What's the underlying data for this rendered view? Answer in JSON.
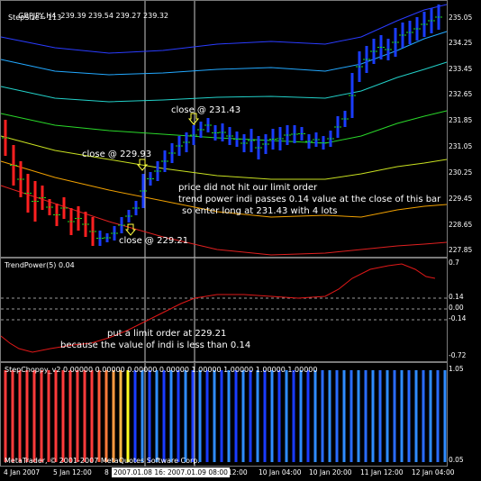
{
  "chart": {
    "symbol_label": "GBPJPY,H4",
    "ohlc": "239.39 239.54 239.27 239.32",
    "stepsize_label": "StepSize= 113",
    "price_ticks": [
      "235.05",
      "234.25",
      "233.45",
      "232.65",
      "231.85",
      "231.05",
      "230.25",
      "229.45",
      "228.65",
      "227.85"
    ],
    "annotations": {
      "close1": "close @ 231.43",
      "close2": "close @ 229.93",
      "close3": "close @ 229.21",
      "note1": "price did not hit our limit order",
      "note2": "trend power indi passes 0.14 value at the close of this bar",
      "note3": "so enter long at 231.43 with 4 lots"
    }
  },
  "trendpower": {
    "title": "TrendPower(5) 0.04",
    "ticks": [
      "0.7",
      "0.14",
      "0.00",
      "-0.14",
      "-0.72"
    ],
    "annotation1": "put a limit order at 229.21",
    "annotation2": "because the value of indi is less than 0.14"
  },
  "stepchoppy": {
    "title": "StepChoppy_v2 0.00000 0.00000 0.00000 0.00000 1.00000 1.00000 1.00000 1.00000",
    "ticks": [
      "1.05",
      "0.05"
    ],
    "copyright": "MetaTrader, © 2001-2007 MetaQuotes Software Corp."
  },
  "dates": {
    "labels": [
      "4 Jan 2007",
      "5 Jan 12:00",
      "8",
      "10 Jan 04:00",
      "10 Jan 20:00",
      "11 Jan 12:00",
      "12 Jan 04:00"
    ],
    "selection": "2007.01.08 16:00",
    "selection2": "2007.01.09 08:00",
    "after_selection": "12:00"
  },
  "colors": {
    "bear": "#ff2020",
    "bull": "#1a3cff",
    "signal": "#ffffff",
    "choppy_red": "#ff3b3b",
    "choppy_yellow": "#ffff20",
    "choppy_blue": "#1a3cff",
    "choppy_lightblue": "#2f8cff"
  }
}
